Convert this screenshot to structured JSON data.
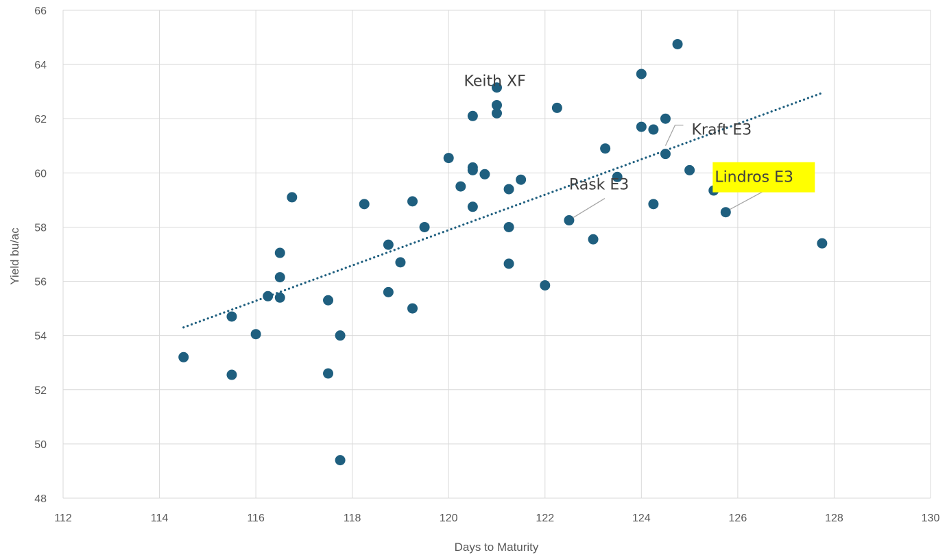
{
  "chart_data": {
    "type": "scatter",
    "title": "",
    "xlabel": "Days to Maturity",
    "ylabel": "Yield bu/ac",
    "xlim": [
      112,
      130
    ],
    "ylim": [
      48,
      66
    ],
    "xticks": [
      112,
      114,
      116,
      118,
      120,
      122,
      124,
      126,
      128,
      130
    ],
    "yticks": [
      48,
      50,
      52,
      54,
      56,
      58,
      60,
      62,
      64,
      66
    ],
    "grid": true,
    "legend": "none",
    "colors": {
      "marker": "#1f5f7f",
      "trendline": "#1f5f7f",
      "grid": "#d9d9d9",
      "highlight": "#ffff00",
      "leader": "#a6a6a6"
    },
    "series": [
      {
        "x": [
          114.5,
          115.5,
          115.5,
          116,
          116.25,
          116.5,
          116.5,
          116.5,
          116.75,
          117.5,
          117.5,
          117.75,
          117.75,
          118.25,
          118.75,
          118.75,
          119,
          119.25,
          119.25,
          119.5,
          120,
          120.25,
          120.5,
          120.5,
          120.5,
          120.5,
          120.75,
          121,
          121,
          121,
          121.25,
          121.25,
          121.25,
          121.5,
          122,
          122.25,
          122.5,
          123,
          123.25,
          123.5,
          124,
          124,
          124.25,
          124.25,
          124.5,
          124.5,
          124.75,
          125,
          125.5,
          125.75,
          127.75
        ],
        "y": [
          53.2,
          52.55,
          54.7,
          54.05,
          55.45,
          57.05,
          56.15,
          55.4,
          59.1,
          55.3,
          52.6,
          54.0,
          49.4,
          58.85,
          57.35,
          55.6,
          56.7,
          58.95,
          55.0,
          58.0,
          60.55,
          59.5,
          62.1,
          60.2,
          60.1,
          58.75,
          59.95,
          63.15,
          62.5,
          62.2,
          59.4,
          58.0,
          56.65,
          59.75,
          55.85,
          62.4,
          58.25,
          57.55,
          60.9,
          59.85,
          63.65,
          61.7,
          61.6,
          58.85,
          62.0,
          60.7,
          64.75,
          60.1,
          59.35,
          58.55,
          57.4
        ]
      }
    ],
    "trendline": {
      "type": "linear",
      "style": "dotted",
      "x": [
        114.5,
        127.75
      ],
      "y": [
        54.3,
        62.95
      ]
    },
    "annotations": [
      {
        "text": "Keith XF",
        "x": 121,
        "y": 63.15,
        "highlight": false,
        "leader": false
      },
      {
        "text": "Kraft E3",
        "x": 124.5,
        "y": 60.7,
        "highlight": false,
        "leader": true
      },
      {
        "text": "Rask E3",
        "x": 122.5,
        "y": 58.25,
        "highlight": false,
        "leader": true
      },
      {
        "text": "Lindros E3",
        "x": 125.75,
        "y": 58.55,
        "highlight": true,
        "leader": true
      }
    ]
  }
}
